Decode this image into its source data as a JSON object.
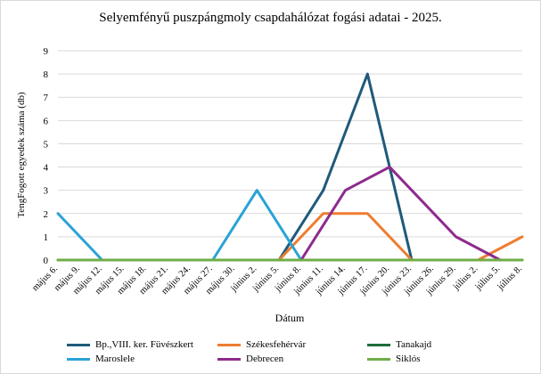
{
  "chart_data": {
    "type": "line",
    "title": "Selyemfényű puszpángmoly csapdahálózat fogási adatai - 2025.",
    "xlabel": "Dátum",
    "ylabel": "TengFogott egyedek száma (db)",
    "ylim": [
      0,
      9
    ],
    "y_ticks": [
      "0",
      "1",
      "2",
      "3",
      "4",
      "5",
      "6",
      "7",
      "8",
      "9"
    ],
    "grid": true,
    "legend_position": "bottom",
    "categories": [
      "május 6.",
      "május 9.",
      "május 12.",
      "május 15.",
      "május 18.",
      "május 21.",
      "május 24.",
      "május 27.",
      "május 30.",
      "június 2.",
      "június 5.",
      "június 8.",
      "június 11.",
      "június 14.",
      "június 17.",
      "június 20.",
      "június 23.",
      "június 26.",
      "június 29.",
      "július 2.",
      "július 5.",
      "július 8."
    ],
    "series": [
      {
        "name": "Bp.,VIII. ker. Füvészkert",
        "color": "#1f5a7a",
        "values": [
          null,
          null,
          null,
          null,
          null,
          null,
          null,
          null,
          null,
          null,
          0,
          null,
          3,
          null,
          8,
          null,
          0,
          null,
          null,
          null,
          null,
          null
        ]
      },
      {
        "name": "Székesfehérvár",
        "color": "#ed7d31",
        "values": [
          null,
          null,
          null,
          null,
          null,
          null,
          null,
          null,
          null,
          null,
          0,
          null,
          2,
          null,
          2,
          null,
          0,
          null,
          null,
          0,
          null,
          1
        ]
      },
      {
        "name": "Tanakajd",
        "color": "#1e6b3a",
        "values": [
          0,
          0,
          0,
          0,
          0,
          0,
          0,
          0,
          0,
          0,
          0,
          0,
          0,
          0,
          0,
          0,
          0,
          0,
          0,
          0,
          0,
          0
        ]
      },
      {
        "name": "Maroslele",
        "color": "#2aa3d6",
        "values": [
          2,
          null,
          0,
          null,
          null,
          null,
          null,
          0,
          null,
          3,
          null,
          0,
          null,
          null,
          null,
          null,
          null,
          null,
          null,
          null,
          null,
          null
        ]
      },
      {
        "name": "Debrecen",
        "color": "#8e2a8e",
        "values": [
          null,
          null,
          null,
          null,
          null,
          null,
          null,
          null,
          null,
          null,
          null,
          0,
          null,
          3,
          null,
          4,
          null,
          null,
          1,
          null,
          0,
          null
        ]
      },
      {
        "name": "Siklós",
        "color": "#70ad47",
        "values": [
          0,
          0,
          0,
          0,
          0,
          0,
          0,
          0,
          0,
          0,
          0,
          0,
          0,
          0,
          0,
          0,
          0,
          0,
          0,
          0,
          0,
          0
        ]
      }
    ]
  }
}
